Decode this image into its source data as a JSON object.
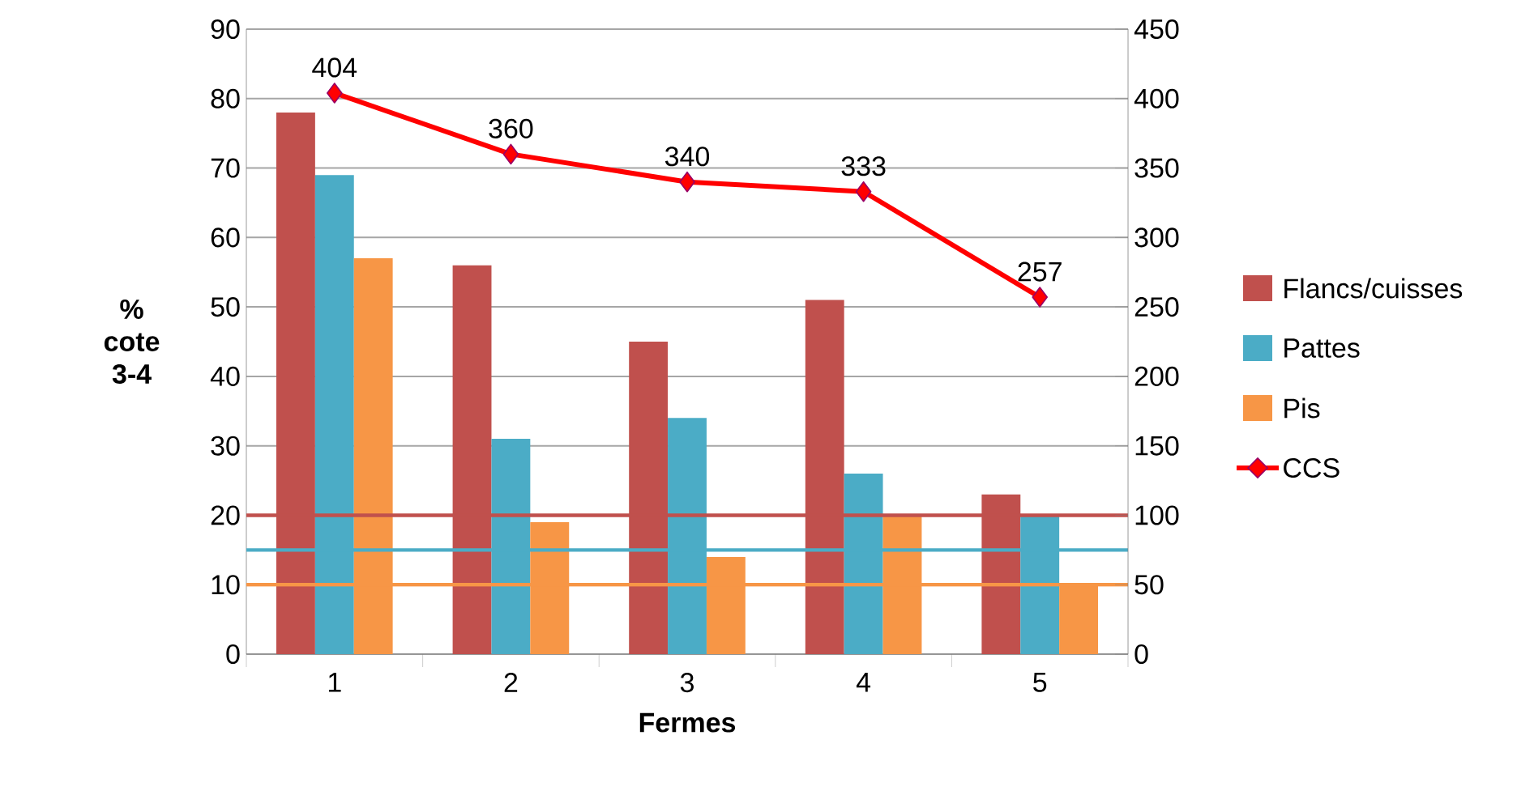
{
  "chart_data": {
    "type": "bar",
    "xlabel": "Fermes",
    "ylabel": "% cote 3-4",
    "categories": [
      "1",
      "2",
      "3",
      "4",
      "5"
    ],
    "series": [
      {
        "name": "Flancs/cuisses",
        "color": "#c0504d",
        "values": [
          78,
          56,
          45,
          51,
          23
        ]
      },
      {
        "name": "Pattes",
        "color": "#4bacc6",
        "values": [
          69,
          31,
          34,
          26,
          20
        ]
      },
      {
        "name": "Pis",
        "color": "#f79646",
        "values": [
          57,
          19,
          14,
          20,
          10
        ]
      },
      {
        "name": "CCS",
        "type": "line",
        "axis": "y2",
        "color": "#ff0000",
        "marker": "diamond",
        "data_labels": true,
        "values": [
          404,
          360,
          340,
          333,
          257
        ]
      }
    ],
    "ylim": [
      0,
      90
    ],
    "yticks": [
      0,
      10,
      20,
      30,
      40,
      50,
      60,
      70,
      80,
      90
    ],
    "y2lim": [
      0,
      450
    ],
    "y2ticks": [
      0,
      50,
      100,
      150,
      200,
      250,
      300,
      350,
      400,
      450
    ],
    "ref_lines": [
      {
        "axis": "y",
        "value": 20,
        "color": "#c0504d"
      },
      {
        "axis": "y",
        "value": 15,
        "color": "#4bacc6"
      },
      {
        "axis": "y",
        "value": 10,
        "color": "#f79646"
      }
    ],
    "grid": "y",
    "legend": "right"
  }
}
